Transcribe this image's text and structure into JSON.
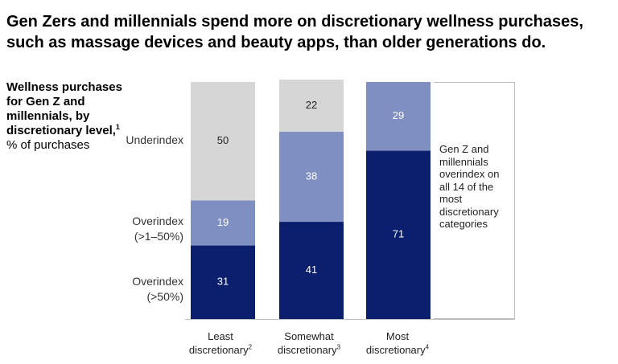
{
  "title": "Gen Zers and millennials spend more on discretionary wellness purchases, such as massage devices and beauty apps, than older generations do.",
  "subtitle": {
    "bold": "Wellness purchases for Gen Z and millennials, by discretionary level,",
    "sup": "1",
    "rest": " % of pur­chases"
  },
  "row_labels": {
    "underindex": "Underindex",
    "over_low_1": "Overindex",
    "over_low_2": "(>1–50%)",
    "over_high_1": "Overindex",
    "over_high_2": "(>50%)"
  },
  "categories": [
    {
      "line1": "Least",
      "line2": "discretionary",
      "sup": "2"
    },
    {
      "line1": "Somewhat",
      "line2": "discretionary",
      "sup": "3"
    },
    {
      "line1": "Most",
      "line2": "discretionary",
      "sup": "4"
    }
  ],
  "callout": "Gen Z and millennials overindex on all 14 of the most discretionary categories",
  "colors": {
    "underindex": "#d6d6d6",
    "over_low": "#7f8fc2",
    "over_high": "#0b1f6e"
  },
  "chart_data": {
    "type": "bar",
    "stacked": true,
    "categories": [
      "Least discretionary",
      "Somewhat discretionary",
      "Most discretionary"
    ],
    "series": [
      {
        "name": "Overindex (>50%)",
        "values": [
          31,
          41,
          71
        ]
      },
      {
        "name": "Overindex (>1–50%)",
        "values": [
          19,
          38,
          29
        ]
      },
      {
        "name": "Underindex",
        "values": [
          50,
          22,
          0
        ]
      }
    ],
    "ylim": [
      0,
      100
    ],
    "grid": false
  }
}
